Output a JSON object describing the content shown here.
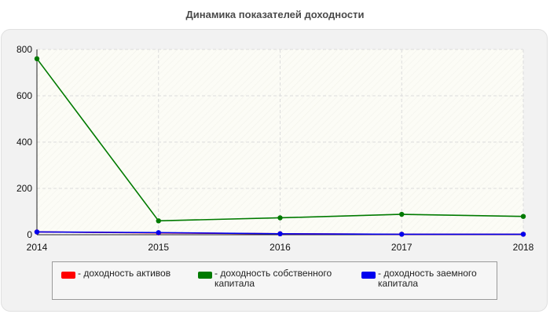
{
  "chart_data": {
    "type": "line",
    "title": "Динамика показателей доходности",
    "xlabel": "",
    "ylabel": "",
    "x": [
      "2014",
      "2015",
      "2016",
      "2017",
      "2018"
    ],
    "ylim": [
      0,
      800
    ],
    "yticks": [
      "0",
      "200",
      "400",
      "600",
      "800"
    ],
    "grid": true,
    "legend_position": "bottom",
    "series": [
      {
        "name": "- доходность активов",
        "color": "#ff0000",
        "values": [
          12,
          8,
          4,
          2,
          2
        ]
      },
      {
        "name": "- доходность собственного\nкапитала",
        "color": "#007a00",
        "values": [
          760,
          60,
          73,
          88,
          79
        ]
      },
      {
        "name": "- доходность заемного\nкапитала",
        "color": "#0000ee",
        "values": [
          12,
          9,
          4,
          2,
          2
        ]
      }
    ]
  }
}
